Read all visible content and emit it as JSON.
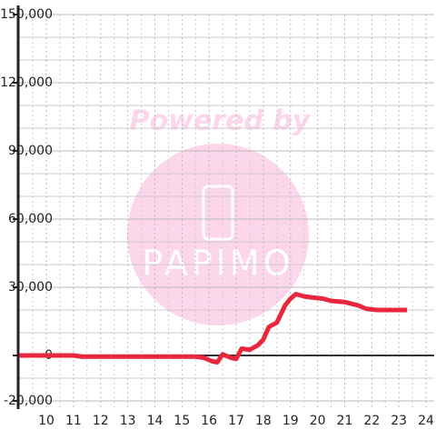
{
  "chart_data": {
    "type": "line",
    "watermark": [
      "Powered by",
      "PAPIMO"
    ],
    "series": [
      {
        "color": "#e8263c",
        "x": [
          9,
          11,
          11.3,
          12,
          15.5,
          15.8,
          16.1,
          16.3,
          16.5,
          16.8,
          17.0,
          17.2,
          17.5,
          17.8,
          18.0,
          18.2,
          18.5,
          18.8,
          19.0,
          19.2,
          19.5,
          19.8,
          20.2,
          20.5,
          21.0,
          21.5,
          21.8,
          22.2,
          23.3
        ],
        "values": [
          0,
          0,
          -500,
          -500,
          -500,
          -1000,
          -2500,
          -3000,
          500,
          -1000,
          -1500,
          3000,
          2500,
          4500,
          7000,
          12500,
          14500,
          22000,
          25000,
          27000,
          26000,
          25500,
          25000,
          24000,
          23500,
          22000,
          20500,
          20000,
          20000
        ]
      }
    ],
    "xlim": [
      8.96,
      24.3
    ],
    "ylim": [
      -23600,
      150000
    ],
    "xticks": [
      10,
      11,
      12,
      13,
      14,
      15,
      16,
      17,
      18,
      19,
      20,
      21,
      22,
      23,
      24
    ],
    "yticks": [
      {
        "value": -20000,
        "label": "-20,000"
      },
      0,
      {
        "value": 30000,
        "label": "30,000"
      },
      {
        "value": 60000,
        "label": "60,000"
      },
      {
        "value": 90000,
        "label": "90,000"
      },
      {
        "value": 120000,
        "label": "120,000"
      },
      {
        "value": 150000,
        "label": "150,000"
      }
    ],
    "minor_xticks": [
      9.5,
      10.5,
      11.5,
      12.5,
      13.5,
      14.5,
      15.5,
      16.5,
      17.5,
      18.5,
      19.5,
      20.5,
      21.5,
      22.5,
      23.5
    ],
    "minor_yticks": [
      -10000,
      10000,
      20000,
      40000,
      50000,
      70000,
      80000,
      100000,
      110000,
      130000,
      140000
    ]
  }
}
